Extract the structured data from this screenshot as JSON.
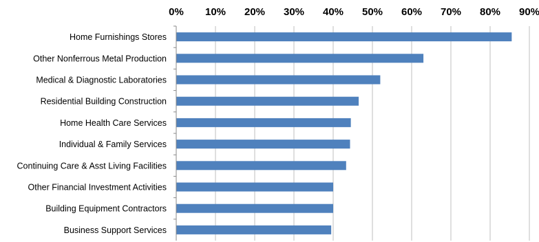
{
  "chart_data": {
    "type": "bar",
    "orientation": "horizontal",
    "axis_position": "top",
    "categories": [
      "Home Furnishings Stores",
      "Other Nonferrous Metal Production",
      "Medical & Diagnostic Laboratories",
      "Residential Building Construction",
      "Home Health Care Services",
      "Individual & Family Services",
      "Continuing Care & Asst Living Facilities",
      "Other Financial Investment Activities",
      "Building Equipment Contractors",
      "Business Support Services"
    ],
    "values": [
      85.5,
      63,
      52,
      46.5,
      44.5,
      44.3,
      43.3,
      40,
      40,
      39.5
    ],
    "xlim": [
      0,
      90
    ],
    "x_ticks": [
      0,
      10,
      20,
      30,
      40,
      50,
      60,
      70,
      80,
      90
    ],
    "x_tick_labels": [
      "0%",
      "10%",
      "20%",
      "30%",
      "40%",
      "50%",
      "60%",
      "70%",
      "80%",
      "90%"
    ],
    "grid": true,
    "bar_color": "#4F81BD",
    "grid_color": "#BFBFBF"
  }
}
